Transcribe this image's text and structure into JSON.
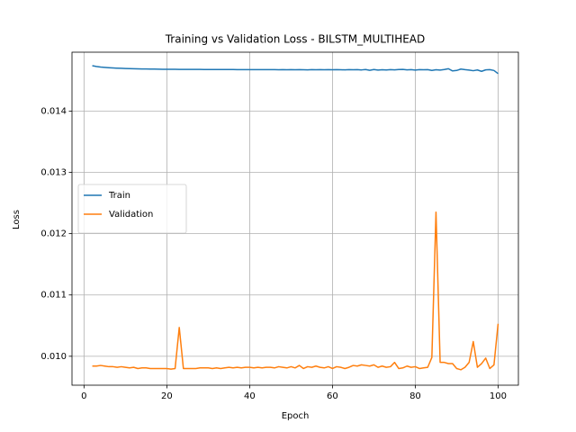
{
  "chart_data": {
    "type": "line",
    "title": "Training vs Validation Loss - BILSTM_MULTIHEAD",
    "x_label": "Epoch",
    "y_label": "Loss",
    "x": [
      2,
      3,
      4,
      5,
      6,
      7,
      8,
      9,
      10,
      11,
      12,
      13,
      14,
      15,
      16,
      17,
      18,
      19,
      20,
      21,
      22,
      23,
      24,
      25,
      26,
      27,
      28,
      29,
      30,
      31,
      32,
      33,
      34,
      35,
      36,
      37,
      38,
      39,
      40,
      41,
      42,
      43,
      44,
      45,
      46,
      47,
      48,
      49,
      50,
      51,
      52,
      53,
      54,
      55,
      56,
      57,
      58,
      59,
      60,
      61,
      62,
      63,
      64,
      65,
      66,
      67,
      68,
      69,
      70,
      71,
      72,
      73,
      74,
      75,
      76,
      77,
      78,
      79,
      80,
      81,
      82,
      83,
      84,
      85,
      86,
      87,
      88,
      89,
      90,
      91,
      92,
      93,
      94,
      95,
      96,
      97,
      98,
      99,
      100
    ],
    "series": [
      {
        "name": "Train",
        "color": "#1f77b4",
        "values": [
          0.01474,
          0.014727,
          0.014718,
          0.014712,
          0.014707,
          0.014703,
          0.0147,
          0.014697,
          0.014694,
          0.014692,
          0.01469,
          0.014688,
          0.014687,
          0.014686,
          0.014685,
          0.014684,
          0.014683,
          0.014682,
          0.014682,
          0.014681,
          0.014681,
          0.01468,
          0.01468,
          0.01468,
          0.014679,
          0.014679,
          0.014679,
          0.014678,
          0.014678,
          0.014678,
          0.014678,
          0.014677,
          0.014677,
          0.014677,
          0.014677,
          0.014676,
          0.014676,
          0.014676,
          0.014676,
          0.014676,
          0.014676,
          0.014675,
          0.014675,
          0.014676,
          0.014675,
          0.014674,
          0.014676,
          0.014674,
          0.014675,
          0.014673,
          0.014675,
          0.014674,
          0.014672,
          0.014675,
          0.014673,
          0.014676,
          0.014674,
          0.014675,
          0.014673,
          0.014676,
          0.014674,
          0.014672,
          0.014675,
          0.014673,
          0.014676,
          0.014671,
          0.014677,
          0.014665,
          0.014678,
          0.014668,
          0.014673,
          0.01467,
          0.014676,
          0.014672,
          0.014678,
          0.01468,
          0.014672,
          0.014675,
          0.014668,
          0.014676,
          0.014673,
          0.014676,
          0.014663,
          0.014674,
          0.014668,
          0.014677,
          0.01469,
          0.014655,
          0.014662,
          0.014685,
          0.014675,
          0.014668,
          0.014658,
          0.01467,
          0.014648,
          0.014672,
          0.014675,
          0.014662,
          0.01461
        ]
      },
      {
        "name": "Validation",
        "color": "#ff7f0e",
        "values": [
          0.00984,
          0.00984,
          0.00985,
          0.00984,
          0.00983,
          0.00983,
          0.00982,
          0.00983,
          0.00982,
          0.00981,
          0.00982,
          0.0098,
          0.00981,
          0.00981,
          0.0098,
          0.0098,
          0.0098,
          0.0098,
          0.0098,
          0.00979,
          0.0098,
          0.01047,
          0.0098,
          0.0098,
          0.0098,
          0.0098,
          0.00981,
          0.00981,
          0.00981,
          0.0098,
          0.00981,
          0.0098,
          0.00981,
          0.00982,
          0.00981,
          0.00982,
          0.00981,
          0.00982,
          0.00982,
          0.00981,
          0.00982,
          0.00981,
          0.00982,
          0.00982,
          0.00981,
          0.00983,
          0.00982,
          0.00981,
          0.00983,
          0.00981,
          0.00985,
          0.0098,
          0.00983,
          0.00982,
          0.00984,
          0.00982,
          0.00981,
          0.00983,
          0.0098,
          0.00983,
          0.00982,
          0.0098,
          0.00982,
          0.00985,
          0.00984,
          0.00986,
          0.00985,
          0.00984,
          0.00986,
          0.00982,
          0.00984,
          0.00982,
          0.00983,
          0.0099,
          0.0098,
          0.00981,
          0.00984,
          0.00982,
          0.00983,
          0.0098,
          0.00981,
          0.00982,
          0.00998,
          0.01235,
          0.0099,
          0.0099,
          0.00988,
          0.00988,
          0.0098,
          0.00978,
          0.00982,
          0.0099,
          0.01024,
          0.00982,
          0.00988,
          0.00997,
          0.0098,
          0.00986,
          0.01053
        ]
      }
    ],
    "xlim": [
      -2.9,
      104.9
    ],
    "ylim": [
      0.009528,
      0.01496
    ],
    "xticks": [
      0,
      20,
      40,
      60,
      80,
      100
    ],
    "yticks": [
      {
        "value": 0.01,
        "label": "0.010"
      },
      0.011,
      0.012,
      0.013,
      0.014
    ],
    "grid": true,
    "legend": "center left"
  }
}
